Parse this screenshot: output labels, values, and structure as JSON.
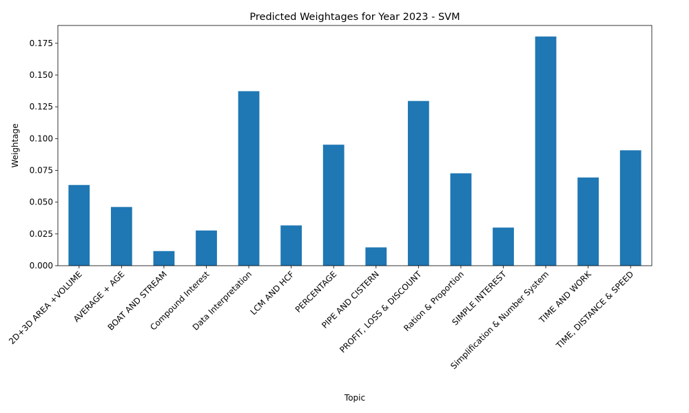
{
  "chart_data": {
    "type": "bar",
    "title": "Predicted Weightages for Year 2023 - SVM",
    "xlabel": "Topic",
    "ylabel": "Weightage",
    "categories": [
      "2D+3D AREA +VOLUME",
      "AVERAGE + AGE",
      "BOAT AND STREAM",
      "Compound Interest",
      "Data Interpretation",
      "LCM AND HCF",
      "PERCENTAGE",
      "PIPE AND CISTERN",
      "PROFIT, LOSS & DISCOUNT",
      "Ration & Proportion",
      "SIMPLE INTEREST",
      "Simplification & Number System",
      "TIME AND WORK",
      "TIME, DISTANCE & SPEED"
    ],
    "values": [
      0.0635,
      0.0462,
      0.0115,
      0.0277,
      0.1373,
      0.0317,
      0.0952,
      0.0144,
      0.1296,
      0.0727,
      0.03,
      0.1803,
      0.0694,
      0.0908
    ],
    "ylim": [
      0,
      0.189
    ],
    "yticks": [
      "0.000",
      "0.025",
      "0.050",
      "0.075",
      "0.100",
      "0.125",
      "0.150",
      "0.175"
    ],
    "ytick_values": [
      0,
      0.025,
      0.05,
      0.075,
      0.1,
      0.125,
      0.15,
      0.175
    ],
    "bar_color": "#1f77b4",
    "grid": false,
    "legend": "none"
  }
}
